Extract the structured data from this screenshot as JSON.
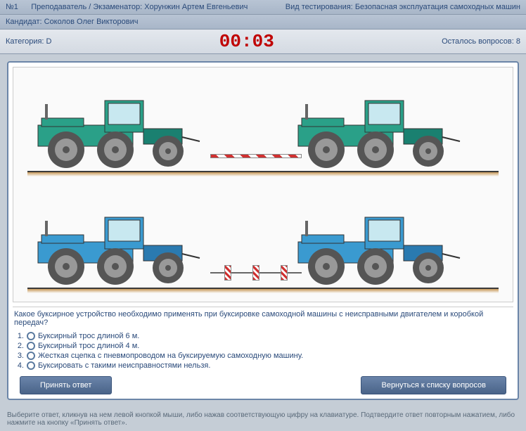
{
  "header": {
    "question_no_label": "№1",
    "examiner_label": "Преподаватель / Экзаменатор:",
    "examiner_name": "Хорунжин Артем Евгеньевич",
    "test_type_label": "Вид тестирования:",
    "test_type": "Безопасная эксплуатация самоходных машин",
    "candidate_label": "Кандидат:",
    "candidate_name": "Соколов Олег Викторович",
    "category_label": "Категория:",
    "category": "D",
    "timer": "00:03",
    "remaining_label": "Осталось вопросов:",
    "remaining": "8"
  },
  "diagram": {
    "scene_top": {
      "tractor_color": "#2aa088",
      "tractor_dark": "#1a8070",
      "connector": "rigid_bar"
    },
    "scene_bottom": {
      "tractor_color": "#3a9ad0",
      "tractor_dark": "#2a7ab0",
      "connector": "rope_with_markers"
    },
    "ground_color": "#3a3a3a",
    "wheel_color": "#888888",
    "tire_color": "#555555",
    "bg_color": "#fafafa"
  },
  "question": {
    "text": "Какое буксирное устройство необходимо применять при буксировке самоходной машины с неисправными двигателем и коробкой передач?",
    "answers": [
      {
        "n": "1.",
        "text": "Буксирный трос длиной 6 м."
      },
      {
        "n": "2.",
        "text": "Буксирный трос длиной 4 м."
      },
      {
        "n": "3.",
        "text": "Жесткая сцепка с пневмопроводом на буксируемую самоходную машину."
      },
      {
        "n": "4.",
        "text": "Буксировать с такими неисправностями нельзя."
      }
    ]
  },
  "buttons": {
    "accept": "Принять ответ",
    "back": "Вернуться к списку вопросов"
  },
  "footer": "Выберите ответ, кликнув на нем левой кнопкой мыши, либо нажав соответствующую цифру на клавиатуре. Подтвердите ответ повторным нажатием, либо нажмите на кнопку «Принять ответ»."
}
